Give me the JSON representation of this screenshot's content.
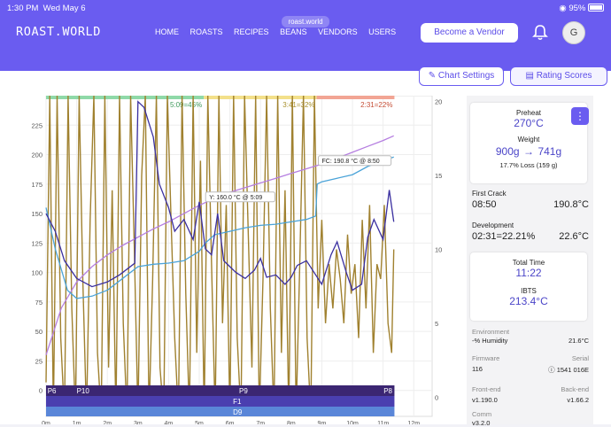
{
  "status_bar": {
    "time": "1:30 PM",
    "date": "Wed May 6",
    "battery": "95%"
  },
  "browser": {
    "url": "roast.world"
  },
  "nav": {
    "logo": "ROAST.WORLD",
    "menu": [
      "HOME",
      "ROASTS",
      "RECIPES",
      "BEANS",
      "VENDORS",
      "USERS"
    ],
    "vendor_button": "Become a Vendor",
    "avatar_initial": "G"
  },
  "toolbar": {
    "chart_settings": "Chart Settings",
    "rating_scores": "Rating Scores"
  },
  "sidebar": {
    "preheat_label": "Preheat",
    "preheat_value": "270°C",
    "weight_label": "Weight",
    "weight_in": "900g",
    "weight_arrow": "→",
    "weight_out": "741g",
    "weight_loss": "17.7% Loss (159 g)",
    "first_crack_label": "First Crack",
    "first_crack_time": "08:50",
    "first_crack_temp": "190.8°C",
    "development_label": "Development",
    "development_time": "02:31=22.21%",
    "development_temp": "22.6°C",
    "total_time_label": "Total Time",
    "total_time_value": "11:22",
    "ibts_label": "IBTS",
    "ibts_value": "213.4°C",
    "environment_label": "Environment",
    "humidity": "-% Humidity",
    "env_temp": "21.6°C",
    "firmware_label": "Firmware",
    "firmware_value": "116",
    "serial_label": "Serial",
    "serial_value": "1541 016E",
    "frontend_label": "Front-end",
    "frontend_value": "v1.190.0",
    "backend_label": "Back-end",
    "backend_value": "v1.66.2",
    "comm_label": "Comm",
    "comm_value": "v3.2.0"
  },
  "colors": {
    "brand": "#6a5cf0",
    "bean_temp": "#3a2fa0",
    "env_temp": "#4aa3d8",
    "ror": "#a0812f",
    "ibts": "#b57ee0"
  },
  "chart_data": {
    "type": "line",
    "x_label": "",
    "y_label": "",
    "x_ticks": [
      "0m",
      "1m",
      "2m",
      "3m",
      "4m",
      "5m",
      "6m",
      "7m",
      "8m",
      "9m",
      "10m",
      "11m",
      "12m"
    ],
    "y_left_ticks": [
      "0",
      "25",
      "50",
      "75",
      "100",
      "125",
      "150",
      "175",
      "200",
      "225"
    ],
    "y_right_ticks": [
      "0",
      "5",
      "10",
      "15",
      "20"
    ],
    "xlim": [
      0,
      12.6
    ],
    "ylim_left": [
      -22,
      250
    ],
    "ylim_right": [
      -1.3,
      20.4
    ],
    "phases": [
      {
        "label": "5:09=45%",
        "color": "#8fd9a8",
        "from": 0,
        "to": 5.15
      },
      {
        "label": "3:41=32%",
        "color": "#f3e08a",
        "from": 5.15,
        "to": 8.83
      },
      {
        "label": "2:31=22%",
        "color": "#f2a594",
        "from": 8.83,
        "to": 11.37
      }
    ],
    "annotations": [
      {
        "label": "Y: 160.0 °C @ 5:09",
        "x": 5.15,
        "y": 160.0
      },
      {
        "label": "FC: 190.8 °C @ 8:50",
        "x": 8.83,
        "y": 190.8
      }
    ],
    "control_labels": [
      "P6",
      "P10",
      "F1",
      "D9",
      "P9",
      "P8"
    ],
    "series": [
      {
        "key": "bean",
        "x": [
          0,
          0.3,
          0.6,
          1,
          1.5,
          2,
          2.4,
          2.7,
          2.9,
          3,
          3.2,
          3.5,
          3.7,
          4,
          4.2,
          4.5,
          4.8,
          5,
          5.2,
          5.4,
          5.6,
          5.8,
          6,
          6.2,
          6.5,
          6.8,
          7,
          7.2,
          7.5,
          7.8,
          8,
          8.2,
          8.5,
          8.8,
          9,
          9.3,
          9.5,
          9.8,
          10,
          10.3,
          10.5,
          10.7,
          11,
          11.2,
          11.35
        ],
        "y": [
          150,
          135,
          110,
          95,
          88,
          92,
          98,
          104,
          108,
          245,
          240,
          215,
          175,
          155,
          135,
          145,
          128,
          160,
          120,
          115,
          150,
          110,
          105,
          100,
          95,
          102,
          112,
          96,
          98,
          90,
          96,
          106,
          110,
          98,
          90,
          115,
          126,
          100,
          85,
          90,
          130,
          145,
          128,
          170,
          143
        ]
      },
      {
        "key": "env",
        "x": [
          0,
          0.3,
          0.7,
          1,
          1.5,
          2,
          2.5,
          3,
          3.5,
          4,
          4.5,
          5,
          5.2,
          5.5,
          6,
          6.5,
          7,
          7.5,
          8,
          8.5,
          8.8,
          8.85,
          9,
          9.5,
          10,
          10.5,
          11,
          11.35
        ],
        "y": [
          155,
          120,
          85,
          78,
          80,
          85,
          95,
          105,
          107,
          108,
          110,
          118,
          125,
          132,
          135,
          138,
          140,
          141,
          143,
          145,
          148,
          175,
          177,
          180,
          183,
          190,
          195,
          198
        ]
      },
      {
        "key": "ibts",
        "x": [
          0,
          0.5,
          1,
          1.5,
          2,
          2.5,
          3,
          3.5,
          4,
          4.5,
          5,
          5.5,
          6,
          6.5,
          7,
          7.5,
          8,
          8.5,
          9,
          9.5,
          10,
          10.5,
          11,
          11.35
        ],
        "y": [
          30,
          70,
          92,
          105,
          115,
          123,
          130,
          137,
          143,
          150,
          157,
          163,
          168,
          172,
          176,
          180,
          184,
          188,
          192,
          197,
          202,
          207,
          212,
          216
        ]
      },
      {
        "key": "ror",
        "x": [
          0,
          0.12,
          0.24,
          0.36,
          0.48,
          0.6,
          0.72,
          0.84,
          0.96,
          1.08,
          1.2,
          1.32,
          1.44,
          1.56,
          1.68,
          1.8,
          1.92,
          2.04,
          2.16,
          2.28,
          2.4,
          2.52,
          2.64,
          2.76,
          2.88,
          3,
          3.12,
          3.24,
          3.36,
          3.48,
          3.6,
          3.72,
          3.84,
          3.96,
          4.08,
          4.2,
          4.32,
          4.44,
          4.56,
          4.68,
          4.8,
          4.92,
          5.04,
          5.16,
          5.28,
          5.4,
          5.52,
          5.64,
          5.76,
          5.88,
          6,
          6.12,
          6.24,
          6.36,
          6.48,
          6.6,
          6.72,
          6.84,
          6.96,
          7.08,
          7.2,
          7.32,
          7.44,
          7.56,
          7.68,
          7.8,
          7.92,
          8.04,
          8.16,
          8.28,
          8.4,
          8.52,
          8.64,
          8.76,
          8.88,
          9,
          9.12,
          9.24,
          9.36,
          9.48,
          9.6,
          9.72,
          9.84,
          9.96,
          10.08,
          10.2,
          10.32,
          10.44,
          10.56,
          10.68,
          10.8,
          10.92,
          11.04,
          11.16,
          11.28,
          11.35
        ],
        "y": [
          1,
          20.4,
          -1.3,
          20.4,
          4,
          -1.3,
          20.4,
          6,
          -1.3,
          20.4,
          8,
          -1.3,
          12,
          20.4,
          3,
          -1.3,
          20.4,
          2,
          14,
          -1.3,
          20.4,
          5,
          -1.3,
          20.4,
          10,
          -1.3,
          15,
          20.4,
          -1.3,
          8,
          20.4,
          2,
          -1.3,
          20.4,
          12,
          4,
          -1.3,
          20.4,
          7,
          -1.3,
          20.4,
          3,
          16,
          -1.3,
          20.4,
          9,
          -1.3,
          20.4,
          5,
          13,
          -1.3,
          20.4,
          4,
          -1.3,
          20.4,
          11,
          2,
          20.4,
          -1.3,
          8,
          20.4,
          6,
          -1.3,
          20.4,
          3,
          14,
          -1.3,
          20.4,
          -1.3,
          9,
          20.4,
          4,
          -1.3,
          20.4,
          6,
          12,
          5,
          9,
          6,
          10,
          8,
          5,
          11,
          7,
          9,
          4,
          12,
          6,
          13,
          3,
          9,
          8,
          13,
          5,
          3,
          10
        ]
      }
    ]
  }
}
